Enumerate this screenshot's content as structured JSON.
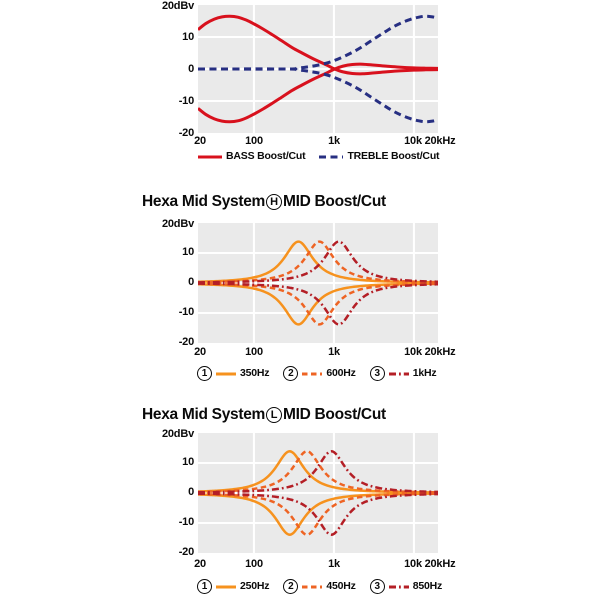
{
  "colors": {
    "bass_red": "#d8111d",
    "treble_blue": "#272f82",
    "orange_solid": "#f6921e",
    "orange_dashed": "#ee6424",
    "dark_red": "#b41f26",
    "plot_bg": "#eaeaea",
    "grid": "#ffffff",
    "text": "#0a0a0a"
  },
  "chart_data": [
    {
      "type": "line",
      "xscale": "log",
      "xlim": [
        20,
        20000
      ],
      "ylim": [
        -20,
        20
      ],
      "y_unit_label": "20dBv",
      "y_ticks": [
        "10",
        "0",
        "-10",
        "-20"
      ],
      "x_ticks": [
        "20",
        "100",
        "1k",
        "10k",
        "20kHz"
      ],
      "grid": true,
      "legend_position": "bottom",
      "series": [
        {
          "name": "BASS Boost/Cut",
          "color_key": "bass_red",
          "dash": "none",
          "width": 3,
          "mirrored": true,
          "points_boost_hz_db": [
            [
              20,
              12.3
            ],
            [
              25,
              14.2
            ],
            [
              32,
              15.6
            ],
            [
              40,
              16.3
            ],
            [
              50,
              16.5
            ],
            [
              63,
              16.2
            ],
            [
              80,
              15.3
            ],
            [
              100,
              14.1
            ],
            [
              130,
              12.5
            ],
            [
              170,
              10.7
            ],
            [
              220,
              8.9
            ],
            [
              300,
              6.7
            ],
            [
              400,
              5.0
            ],
            [
              550,
              3.2
            ],
            [
              700,
              2.0
            ],
            [
              850,
              1.0
            ],
            [
              1000,
              0.1
            ],
            [
              1300,
              -0.9
            ],
            [
              1700,
              -1.4
            ],
            [
              2300,
              -1.5
            ],
            [
              3200,
              -1.2
            ],
            [
              4500,
              -0.9
            ],
            [
              6500,
              -0.6
            ],
            [
              10000,
              -0.35
            ],
            [
              14000,
              -0.25
            ],
            [
              20000,
              -0.2
            ]
          ]
        },
        {
          "name": "TREBLE Boost/Cut",
          "color_key": "treble_blue",
          "dash": "7 4.5",
          "width": 3,
          "mirrored": true,
          "points_boost_hz_db": [
            [
              20,
              0
            ],
            [
              250,
              0
            ],
            [
              350,
              0.3
            ],
            [
              450,
              0.6
            ],
            [
              600,
              1.1
            ],
            [
              800,
              1.8
            ],
            [
              1000,
              2.6
            ],
            [
              1300,
              3.8
            ],
            [
              1700,
              5.2
            ],
            [
              2200,
              6.8
            ],
            [
              3000,
              9.0
            ],
            [
              4000,
              11.0
            ],
            [
              5200,
              12.8
            ],
            [
              6800,
              14.3
            ],
            [
              9000,
              15.5
            ],
            [
              11500,
              16.2
            ],
            [
              14000,
              16.5
            ],
            [
              17000,
              16.3
            ],
            [
              20000,
              15.9
            ]
          ]
        }
      ]
    },
    {
      "type": "line",
      "title_prefix": "Hexa Mid System",
      "title_circle": "H",
      "title_suffix": "MID Boost/Cut",
      "xscale": "log",
      "xlim": [
        20,
        20000
      ],
      "ylim": [
        -20,
        20
      ],
      "y_unit_label": "20dBv",
      "y_ticks": [
        "10",
        "0",
        "-10",
        "-20"
      ],
      "x_ticks": [
        "20",
        "100",
        "1k",
        "10k",
        "20kHz"
      ],
      "grid": true,
      "legend_position": "bottom",
      "series": [
        {
          "num": "1",
          "name": "350Hz",
          "color_key": "orange_solid",
          "dash": "none",
          "width": 2.5,
          "mirrored": true,
          "bell": {
            "center_hz": 360,
            "peak_db": 13.8,
            "log_width": 0.22
          }
        },
        {
          "num": "2",
          "name": "600Hz",
          "color_key": "orange_dashed",
          "dash": "5.5 3.5",
          "width": 2.5,
          "mirrored": true,
          "bell": {
            "center_hz": 660,
            "peak_db": 13.8,
            "log_width": 0.22
          }
        },
        {
          "num": "3",
          "name": "1kHz",
          "color_key": "dark_red",
          "dash": "7 3 1.8 3",
          "width": 2.5,
          "mirrored": true,
          "bell": {
            "center_hz": 1150,
            "peak_db": 13.8,
            "log_width": 0.22
          }
        }
      ]
    },
    {
      "type": "line",
      "title_prefix": "Hexa Mid System",
      "title_circle": "L",
      "title_suffix": "MID Boost/Cut",
      "xscale": "log",
      "xlim": [
        20,
        20000
      ],
      "ylim": [
        -20,
        20
      ],
      "y_unit_label": "20dBv",
      "y_ticks": [
        "10",
        "0",
        "-10",
        "-20"
      ],
      "x_ticks": [
        "20",
        "100",
        "1k",
        "10k",
        "20kHz"
      ],
      "grid": true,
      "legend_position": "bottom",
      "series": [
        {
          "num": "1",
          "name": "250Hz",
          "color_key": "orange_solid",
          "dash": "none",
          "width": 2.5,
          "mirrored": true,
          "bell": {
            "center_hz": 280,
            "peak_db": 13.9,
            "log_width": 0.22
          }
        },
        {
          "num": "2",
          "name": "450Hz",
          "color_key": "orange_dashed",
          "dash": "5.5 3.5",
          "width": 2.5,
          "mirrored": true,
          "bell": {
            "center_hz": 460,
            "peak_db": 13.9,
            "log_width": 0.22
          }
        },
        {
          "num": "3",
          "name": "850Hz",
          "color_key": "dark_red",
          "dash": "7 3 1.8 3",
          "width": 2.5,
          "mirrored": true,
          "bell": {
            "center_hz": 930,
            "peak_db": 13.9,
            "log_width": 0.22
          }
        }
      ]
    }
  ]
}
